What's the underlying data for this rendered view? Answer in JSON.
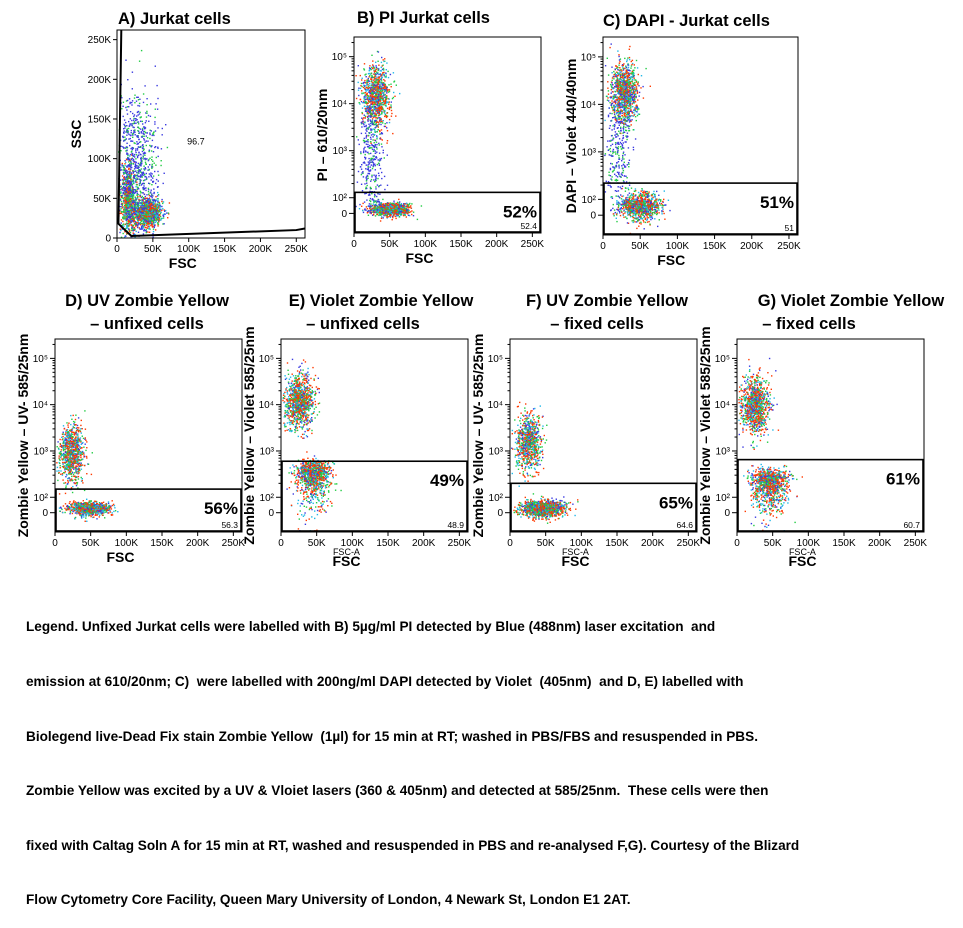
{
  "chart_data": [
    {
      "type": "scatter",
      "id": "A",
      "title": "A) Jurkat cells",
      "xlabel": "FSC",
      "ylabel": "SSC",
      "yscale": "linear",
      "xlim": [
        0,
        262144
      ],
      "ylim": [
        0,
        262144
      ],
      "xticks": [
        "0",
        "50K",
        "100K",
        "150K",
        "200K",
        "250K"
      ],
      "yticks": [
        "0",
        "50K",
        "100K",
        "150K",
        "200K",
        "250K"
      ],
      "gate": {
        "kind": "polygon",
        "value": "96.7",
        "percent": ""
      },
      "populations": [
        {
          "x": 42000,
          "y": 33000,
          "sx": 10000,
          "sy": 9000,
          "n": 1100,
          "density": "high"
        },
        {
          "x": 15000,
          "y": 48000,
          "sx": 6000,
          "sy": 22000,
          "n": 700,
          "density": "med"
        },
        {
          "x": 25000,
          "y": 90000,
          "sx": 15000,
          "sy": 45000,
          "n": 900,
          "density": "low"
        }
      ]
    },
    {
      "type": "scatter",
      "id": "B",
      "title": "B) PI  Jurkat cells",
      "xlabel": "FSC",
      "ylabel": "PI – 610/20nm",
      "yscale": "log",
      "xlim": [
        0,
        262144
      ],
      "ylim": [
        -100,
        262144
      ],
      "xticks": [
        "0",
        "50K",
        "100K",
        "150K",
        "200K",
        "250K"
      ],
      "yticks": [
        "0",
        "10²",
        "10³",
        "10⁴",
        "10⁵"
      ],
      "gate": {
        "kind": "rect",
        "threshold": 130,
        "value": "52.4",
        "percent": "52%"
      },
      "populations": [
        {
          "x": 30000,
          "y": 15000,
          "sx": 10000,
          "sy": 0.32,
          "n": 1000,
          "density": "high"
        },
        {
          "x": 50000,
          "y": 30,
          "sx": 14000,
          "sy": 20,
          "n": 1000,
          "density": "high"
        },
        {
          "x": 25000,
          "y": 800,
          "sx": 9000,
          "sy": 0.7,
          "n": 350,
          "density": "low"
        }
      ]
    },
    {
      "type": "scatter",
      "id": "C",
      "title": "C) DAPI - Jurkat cells",
      "xlabel": "FSC",
      "ylabel": "DAPI – Violet 440/40nm",
      "yscale": "log",
      "xlim": [
        0,
        262144
      ],
      "ylim": [
        -100,
        262144
      ],
      "xticks": [
        "0",
        "50K",
        "100K",
        "150K",
        "200K",
        "250K"
      ],
      "yticks": [
        "0",
        "10²",
        "10³",
        "10⁴",
        "10⁵"
      ],
      "gate": {
        "kind": "rect",
        "threshold": 220,
        "value": "51",
        "percent": "51%"
      },
      "populations": [
        {
          "x": 28000,
          "y": 18000,
          "sx": 9000,
          "sy": 0.3,
          "n": 1000,
          "density": "high"
        },
        {
          "x": 50000,
          "y": 60,
          "sx": 13000,
          "sy": 40,
          "n": 1000,
          "density": "high"
        },
        {
          "x": 20000,
          "y": 1500,
          "sx": 9000,
          "sy": 0.7,
          "n": 350,
          "density": "low"
        }
      ]
    },
    {
      "type": "scatter",
      "id": "D",
      "title": "D) UV Zombie  Yellow\n– unfixed cells",
      "xlabel": "FSC",
      "sublabel": "",
      "ylabel": "Zombie Yellow – UV- 585/25nm",
      "yscale": "log",
      "xlim": [
        0,
        262144
      ],
      "ylim": [
        -100,
        262144
      ],
      "xticks": [
        "0",
        "50K",
        "100K",
        "150K",
        "200K",
        "250K"
      ],
      "yticks": [
        "0",
        "10²",
        "10³",
        "10⁴",
        "10⁵"
      ],
      "gate": {
        "kind": "rect",
        "threshold": 150,
        "value": "56.3",
        "percent": "56%"
      },
      "populations": [
        {
          "x": 22000,
          "y": 900,
          "sx": 9000,
          "sy": 0.3,
          "n": 900,
          "density": "high"
        },
        {
          "x": 48000,
          "y": 30,
          "sx": 14000,
          "sy": 20,
          "n": 1100,
          "density": "high"
        }
      ]
    },
    {
      "type": "scatter",
      "id": "E",
      "title": "E) Violet Zombie  Yellow\n– unfixed cells",
      "xlabel": "FSC",
      "sublabel": "FSC-A",
      "ylabel": "Zombie Yellow – Violet 585/25nm",
      "yscale": "log",
      "xlim": [
        0,
        262144
      ],
      "ylim": [
        -100,
        262144
      ],
      "xticks": [
        "0",
        "50K",
        "100K",
        "150K",
        "200K",
        "250K"
      ],
      "yticks": [
        "0",
        "10²",
        "10³",
        "10⁴",
        "10⁵"
      ],
      "gate": {
        "kind": "rect",
        "threshold": 600,
        "value": "48.9",
        "percent": "49%"
      },
      "populations": [
        {
          "x": 25000,
          "y": 12000,
          "sx": 10000,
          "sy": 0.3,
          "n": 1000,
          "density": "high"
        },
        {
          "x": 45000,
          "y": 300,
          "sx": 12000,
          "sy": 150,
          "n": 1000,
          "density": "high"
        }
      ]
    },
    {
      "type": "scatter",
      "id": "F",
      "title": "F) UV Zombie  Yellow\n– fixed cells",
      "xlabel": "FSC",
      "sublabel": "FSC-A",
      "ylabel": "Zombie Yellow – UV- 585/25nm",
      "yscale": "log",
      "xlim": [
        0,
        262144
      ],
      "ylim": [
        -100,
        262144
      ],
      "xticks": [
        "0",
        "50K",
        "100K",
        "150K",
        "200K",
        "250K"
      ],
      "yticks": [
        "0",
        "10²",
        "10³",
        "10⁴",
        "10⁵"
      ],
      "gate": {
        "kind": "rect",
        "threshold": 200,
        "value": "64.6",
        "percent": "65%"
      },
      "populations": [
        {
          "x": 25000,
          "y": 1500,
          "sx": 9000,
          "sy": 0.3,
          "n": 800,
          "density": "high"
        },
        {
          "x": 45000,
          "y": 30,
          "sx": 15000,
          "sy": 25,
          "n": 1200,
          "density": "high"
        }
      ]
    },
    {
      "type": "scatter",
      "id": "G",
      "title": "G) Violet Zombie  Yellow\n– fixed cells",
      "xlabel": "FSC",
      "sublabel": "FSC-A",
      "ylabel": "Zombie Yellow – Violet 585/25nm",
      "yscale": "log",
      "xlim": [
        0,
        262144
      ],
      "ylim": [
        -100,
        262144
      ],
      "xticks": [
        "0",
        "50K",
        "100K",
        "150K",
        "200K",
        "250K"
      ],
      "yticks": [
        "0",
        "10²",
        "10³",
        "10⁴",
        "10⁵"
      ],
      "gate": {
        "kind": "rect",
        "threshold": 650,
        "value": "60.7",
        "percent": "61%"
      },
      "populations": [
        {
          "x": 25000,
          "y": 10000,
          "sx": 10000,
          "sy": 0.3,
          "n": 1000,
          "density": "high"
        },
        {
          "x": 45000,
          "y": 200,
          "sx": 13000,
          "sy": 100,
          "n": 1000,
          "density": "high"
        }
      ]
    }
  ],
  "legend_text": [
    "Legend. Unfixed Jurkat cells were labelled with B) 5µg/ml PI detected by Blue (488nm) laser excitation  and",
    "emission at 610/20nm; C)  were labelled with 200ng/ml DAPI detected by Violet  (405nm)  and D, E) labelled with",
    "Biolegend live-Dead Fix stain Zombie Yellow  (1µl) for 15 min at RT; washed in PBS/FBS and resuspended in PBS.",
    "Zombie Yellow was excited by a UV & Vloiet lasers (360 & 405nm) and detected at 585/25nm.  These cells were then",
    "fixed with Caltag Soln A for 15 min at RT, washed and resuspended in PBS and re-analysed F,G). Courtesy of the Blizard",
    "Flow Cytometry Core Facility, Queen Mary University of London, 4 Newark St, London E1 2AT."
  ],
  "colors": {
    "low": "#3a3ae0",
    "med": "#22cc44",
    "high": "#ff3a00",
    "gate": "#000000",
    "frame": "#000000"
  }
}
